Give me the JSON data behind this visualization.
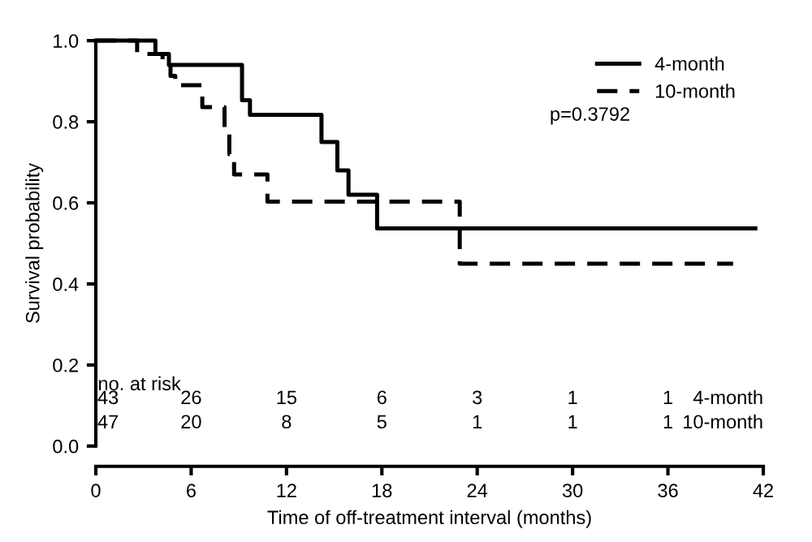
{
  "chart_data": {
    "type": "step",
    "xlabel": "Time of off-treatment interval (months)",
    "ylabel": "Survival probability",
    "series": [
      {
        "name": "4-month",
        "color": "#000000",
        "line_style": "solid",
        "x": [
          0,
          3.75,
          4.6,
          9.2,
          9.7,
          14.2,
          15.2,
          15.9,
          17.7,
          41.5
        ],
        "values": [
          1.0,
          0.967,
          0.94,
          0.853,
          0.817,
          0.75,
          0.68,
          0.62,
          0.537,
          0.537
        ]
      },
      {
        "name": "10-month",
        "color": "#000000",
        "line_style": "dashed",
        "x": [
          0,
          2.6,
          4.2,
          4.7,
          5.0,
          6.7,
          8.1,
          8.4,
          8.7,
          10.8,
          22.9,
          40.1
        ],
        "values": [
          1.0,
          0.967,
          0.94,
          0.913,
          0.89,
          0.836,
          0.78,
          0.72,
          0.67,
          0.603,
          0.45,
          0.45
        ]
      }
    ],
    "xlim": [
      0,
      42
    ],
    "xticks": [
      0,
      6,
      12,
      18,
      24,
      30,
      36,
      42
    ],
    "ylim": [
      0,
      1.0
    ],
    "yticks": [
      {
        "value": 0,
        "label": "0.0"
      },
      0.2,
      0.4,
      0.6,
      0.8,
      {
        "value": 1,
        "label": "1.0"
      }
    ],
    "legend": "top right",
    "grid": false,
    "annotations": [
      "p=0.3792",
      "no. at risk",
      "43",
      "26",
      "15",
      "6",
      "3",
      "1",
      "1",
      "4-month",
      "47",
      "20",
      "8",
      "5",
      "1",
      "1",
      "1",
      "10-month"
    ]
  }
}
